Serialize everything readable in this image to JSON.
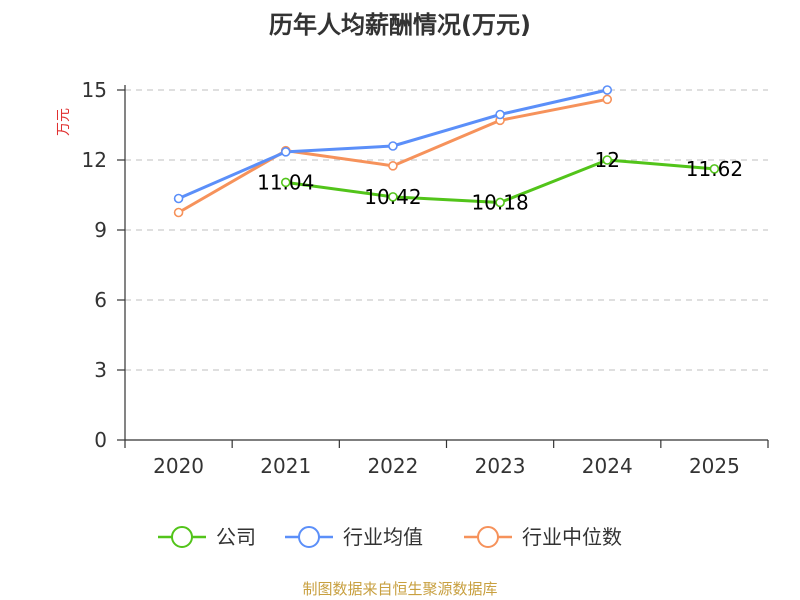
{
  "chart_data": {
    "type": "line",
    "title": "历年人均薪酬情况(万元)",
    "ylabel": "万元",
    "xlabel": "",
    "categories": [
      "2020",
      "2021",
      "2022",
      "2023",
      "2024",
      "2025"
    ],
    "ylim": [
      0,
      15
    ],
    "yticks": [
      0,
      3,
      6,
      9,
      12,
      15
    ],
    "grid": true,
    "legend_position": "bottom",
    "series": [
      {
        "name": "公司",
        "color": "#52c41a",
        "values": [
          null,
          11.04,
          10.42,
          10.18,
          12,
          11.62
        ],
        "labels": [
          "",
          "11.04",
          "10.42",
          "10.18",
          "12",
          "11.62"
        ]
      },
      {
        "name": "行业均值",
        "color": "#5b8ff9",
        "values": [
          10.35,
          12.35,
          12.6,
          13.95,
          15.0,
          null
        ]
      },
      {
        "name": "行业中位数",
        "color": "#f6925b",
        "values": [
          9.75,
          12.4,
          11.75,
          13.7,
          14.6,
          null
        ]
      }
    ]
  },
  "source_text": "制图数据来自恒生聚源数据库",
  "colors": {
    "ylabel": "#e03030",
    "source": "#c8a040",
    "axis": "#333333",
    "grid": "#cccccc"
  }
}
